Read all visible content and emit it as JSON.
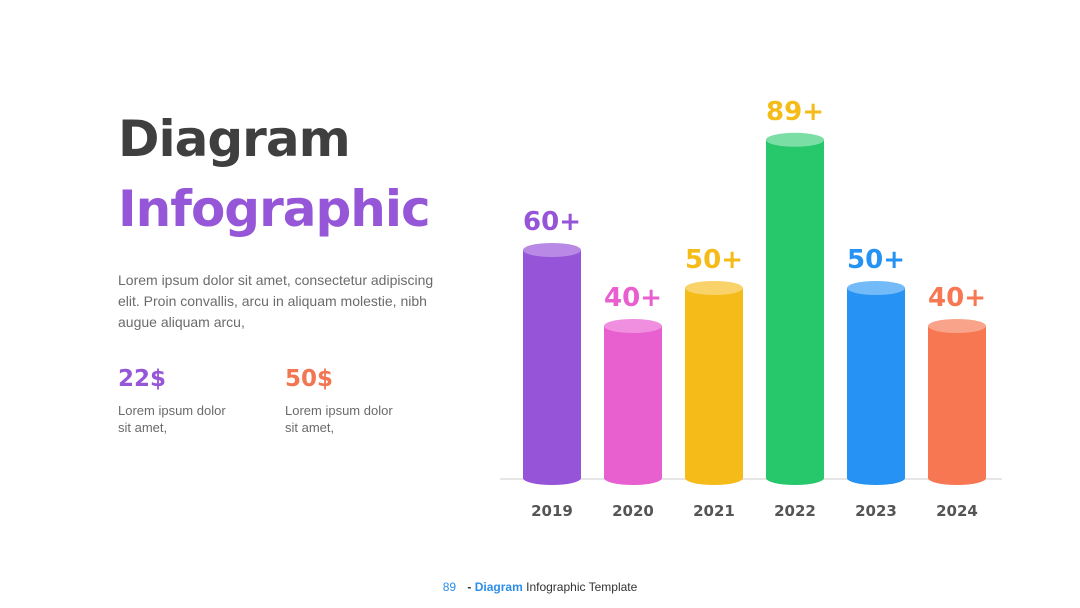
{
  "header": {
    "title_line1": "Diagram",
    "title_line2": "Infographic",
    "description": "Lorem ipsum dolor sit amet, consectetur adipiscing elit. Proin convallis, arcu in aliquam molestie, nibh augue aliquam arcu,"
  },
  "stats": [
    {
      "value": "22$",
      "label": "Lorem ipsum dolor sit amet,",
      "color": "#9656d8"
    },
    {
      "value": "50$",
      "label": "Lorem ipsum dolor sit amet,",
      "color": "#f27651"
    }
  ],
  "chart_data": {
    "type": "bar",
    "categories": [
      "2019",
      "2020",
      "2021",
      "2022",
      "2023",
      "2024"
    ],
    "values": [
      60,
      40,
      50,
      89,
      50,
      40
    ],
    "data_labels": [
      "60+",
      "40+",
      "50+",
      "89+",
      "50+",
      "40+"
    ],
    "colors": [
      "#9654d9",
      "#e85fcf",
      "#f5bb19",
      "#27c76c",
      "#2592f4",
      "#f77752"
    ],
    "cap_colors": [
      "#b88ae6",
      "#f08fe0",
      "#f9d26a",
      "#7adea5",
      "#73baf8",
      "#f9a48a"
    ],
    "label_colors": [
      "#9654d9",
      "#e85fcf",
      "#f5bb19",
      "#f5bb19",
      "#2592f4",
      "#f77752"
    ],
    "title": "",
    "xlabel": "",
    "ylabel": "",
    "ylim": [
      0,
      100
    ],
    "grid": false,
    "legend": "none",
    "style": "cylinder"
  },
  "footer": {
    "page_number": "89",
    "separator": "-",
    "brand": "Diagram",
    "suffix": "Infographic Template"
  }
}
